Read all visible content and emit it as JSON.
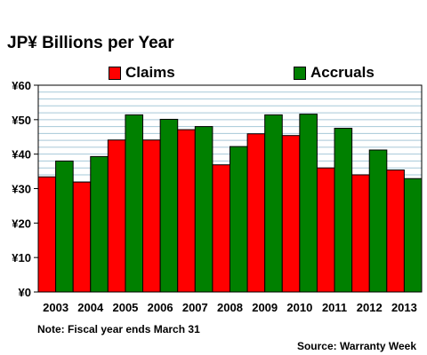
{
  "chart_data": {
    "type": "bar",
    "title": "JP¥ Billions per Year",
    "categories": [
      "2003",
      "2004",
      "2005",
      "2006",
      "2007",
      "2008",
      "2009",
      "2010",
      "2011",
      "2012",
      "2013"
    ],
    "series": [
      {
        "name": "Claims",
        "color": "#ff0000",
        "values": [
          33.4,
          31.9,
          44.1,
          44.1,
          47.1,
          36.9,
          45.9,
          45.4,
          36.0,
          34.0,
          35.4
        ]
      },
      {
        "name": "Accruals",
        "color": "#008000",
        "values": [
          38.0,
          39.3,
          51.4,
          50.1,
          48.0,
          42.2,
          51.4,
          51.6,
          47.5,
          41.2,
          32.9
        ]
      }
    ],
    "ylim": [
      0,
      60
    ],
    "ytick_values": [
      0,
      10,
      20,
      30,
      40,
      50,
      60
    ],
    "ytick_labels": [
      "¥0",
      "¥10",
      "¥20",
      "¥30",
      "¥40",
      "¥50",
      "¥60"
    ],
    "legend_position": "top",
    "grid": true,
    "plot_background": "#ffffff",
    "grid_color": "#a6c8d8",
    "note": "Note: Fiscal year ends March 31",
    "source": "Source: Warranty Week"
  }
}
